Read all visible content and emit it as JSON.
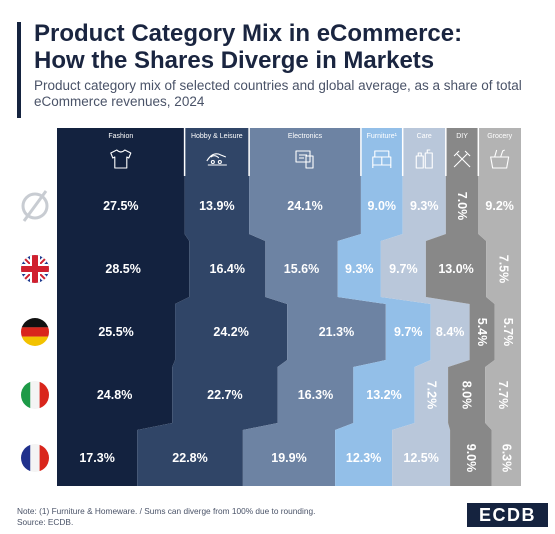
{
  "header": {
    "title_line1": "Product Category Mix in eCommerce:",
    "title_line2": "How the Shares Diverge in Markets",
    "subtitle": "Product category mix of selected countries and global average, as a share of total eCommerce revenues, 2024"
  },
  "footer": {
    "note": "Note: (1) Furniture & Homeware. / Sums can diverge from 100% due to rounding.",
    "source": "Source: ECDB.",
    "logo": "ECDB"
  },
  "chart_data": {
    "type": "bar",
    "orientation": "horizontal-stacked",
    "unit": "%",
    "categories": [
      "Global average",
      "United Kingdom",
      "Germany",
      "Italy",
      "France"
    ],
    "category_icons": [
      "empty-set-icon",
      "uk-flag-icon",
      "germany-flag-icon",
      "italy-flag-icon",
      "france-flag-icon"
    ],
    "series": [
      {
        "name": "Fashion",
        "icon": "tshirt-icon",
        "color": "#13223f",
        "text_color": "#ffffff",
        "values": [
          27.5,
          28.5,
          25.5,
          24.8,
          17.3
        ]
      },
      {
        "name": "Hobby & Leisure",
        "icon": "hobby-icon",
        "color": "#304567",
        "text_color": "#ffffff",
        "values": [
          13.9,
          16.4,
          24.2,
          22.7,
          22.8
        ]
      },
      {
        "name": "Electronics",
        "icon": "devices-icon",
        "color": "#6d83a3",
        "text_color": "#ffffff",
        "values": [
          24.1,
          15.6,
          21.3,
          16.3,
          19.9
        ]
      },
      {
        "name": "Furniture¹",
        "icon": "furniture-icon",
        "color": "#93bfe8",
        "text_color": "#ffffff",
        "values": [
          9.0,
          9.3,
          9.7,
          13.2,
          12.3
        ]
      },
      {
        "name": "Care",
        "icon": "care-icon",
        "color": "#b9c7da",
        "text_color": "#ffffff",
        "values": [
          9.3,
          9.7,
          8.4,
          7.2,
          12.5
        ]
      },
      {
        "name": "DIY",
        "icon": "tools-icon",
        "color": "#888888",
        "text_color": "#ffffff",
        "values": [
          7.0,
          13.0,
          5.4,
          8.0,
          9.0
        ]
      },
      {
        "name": "Grocery",
        "icon": "grocery-icon",
        "color": "#b3b3b3",
        "text_color": "#ffffff",
        "values": [
          9.2,
          7.5,
          5.7,
          7.7,
          6.3
        ]
      }
    ],
    "header_column_shares": [
      27.5,
      13.9,
      24.1,
      9.0,
      9.3,
      7.0,
      9.2
    ],
    "labels": [
      [
        "27.5%",
        "13.9%",
        "24.1%",
        "9.0%",
        "9.3%",
        "7.0%",
        "9.2%"
      ],
      [
        "28.5%",
        "16.4%",
        "15.6%",
        "9.3%",
        "9.7%",
        "13.0%",
        "7.5%"
      ],
      [
        "25.5%",
        "24.2%",
        "21.3%",
        "9.7%",
        "8.4%",
        "5.4%",
        "5.7%"
      ],
      [
        "24.8%",
        "22.7%",
        "16.3%",
        "13.2%",
        "7.2%",
        "8.0%",
        "7.7%"
      ],
      [
        "17.3%",
        "22.8%",
        "19.9%",
        "12.3%",
        "12.5%",
        "9.0%",
        "6.3%"
      ]
    ],
    "rotated_labels": [
      [
        false,
        false,
        false,
        false,
        false,
        true,
        false
      ],
      [
        false,
        false,
        false,
        false,
        false,
        false,
        true
      ],
      [
        false,
        false,
        false,
        false,
        false,
        true,
        true
      ],
      [
        false,
        false,
        false,
        false,
        true,
        true,
        true
      ],
      [
        false,
        false,
        false,
        false,
        false,
        true,
        true
      ]
    ],
    "legend": "top, as column headers",
    "grid": false
  }
}
